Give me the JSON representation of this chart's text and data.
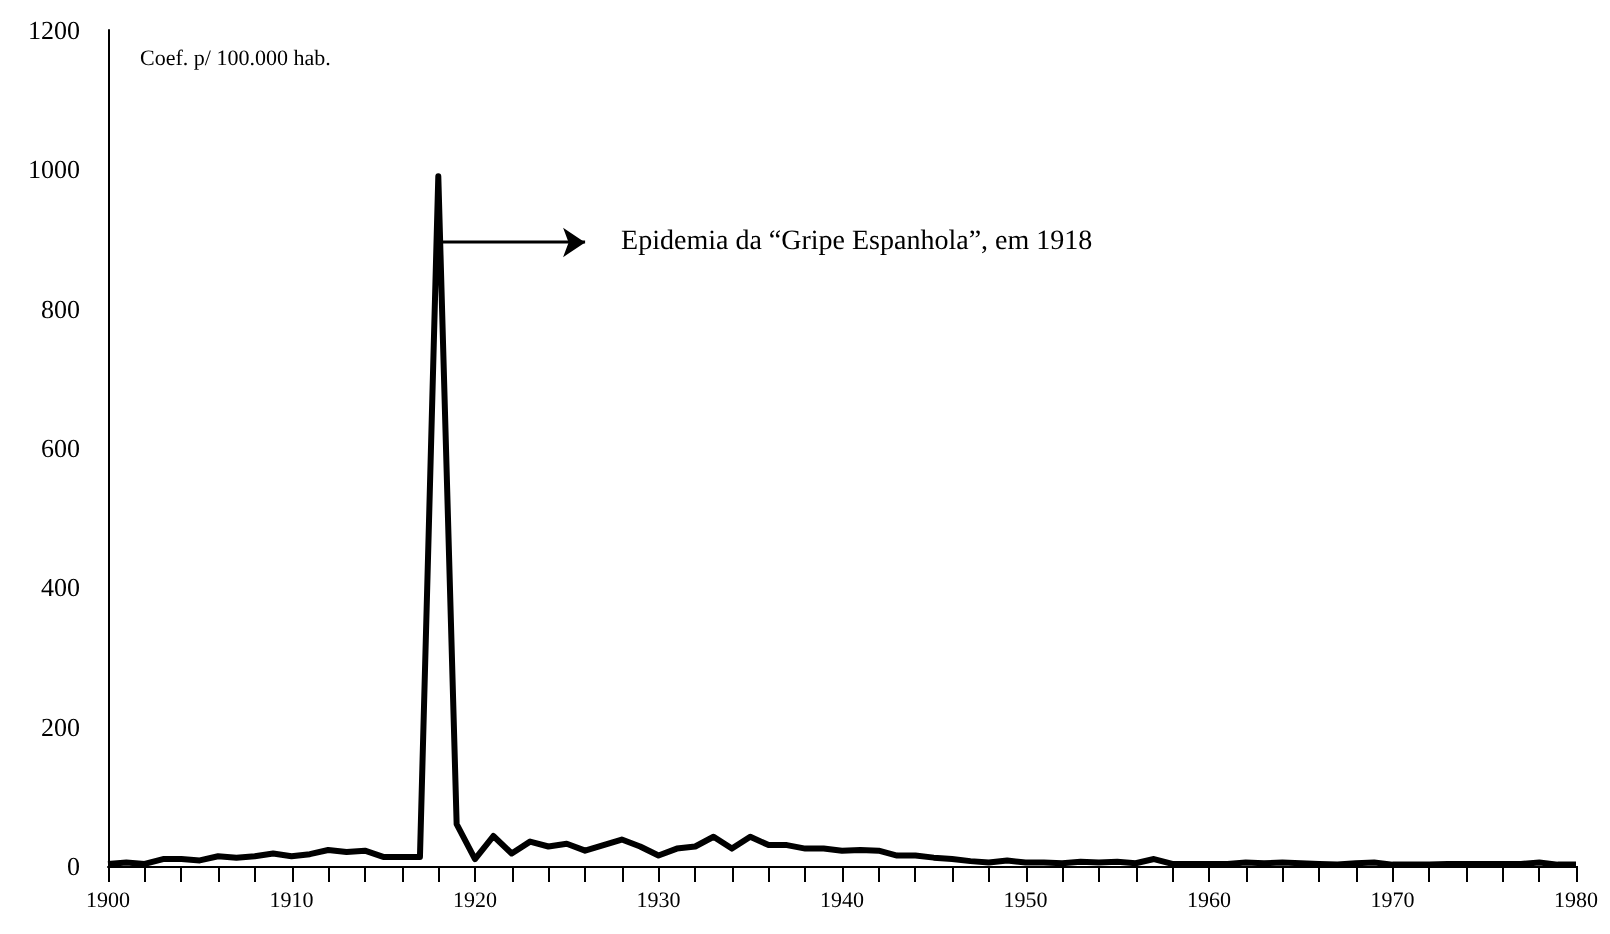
{
  "chart_data": {
    "type": "line",
    "ylabel": "Coef. p/ 100.000 hab.",
    "x": [
      1900,
      1901,
      1902,
      1903,
      1904,
      1905,
      1906,
      1907,
      1908,
      1909,
      1910,
      1911,
      1912,
      1913,
      1914,
      1915,
      1916,
      1917,
      1918,
      1919,
      1920,
      1921,
      1922,
      1923,
      1924,
      1925,
      1926,
      1927,
      1928,
      1929,
      1930,
      1931,
      1932,
      1933,
      1934,
      1935,
      1936,
      1937,
      1938,
      1939,
      1940,
      1941,
      1942,
      1943,
      1944,
      1945,
      1946,
      1947,
      1948,
      1949,
      1950,
      1951,
      1952,
      1953,
      1954,
      1955,
      1956,
      1957,
      1958,
      1959,
      1960,
      1961,
      1962,
      1963,
      1964,
      1965,
      1966,
      1967,
      1968,
      1969,
      1970,
      1971,
      1972,
      1973,
      1974,
      1975,
      1976,
      1977,
      1978,
      1979,
      1980
    ],
    "values": [
      3,
      5,
      3,
      10,
      10,
      8,
      14,
      12,
      14,
      18,
      14,
      17,
      23,
      20,
      22,
      13,
      13,
      13,
      990,
      60,
      10,
      43,
      18,
      35,
      28,
      32,
      22,
      30,
      38,
      28,
      15,
      25,
      28,
      42,
      25,
      42,
      30,
      30,
      25,
      25,
      22,
      23,
      22,
      15,
      15,
      12,
      10,
      7,
      5,
      8,
      5,
      5,
      4,
      6,
      5,
      6,
      4,
      10,
      3,
      3,
      3,
      3,
      5,
      4,
      5,
      4,
      3,
      2,
      4,
      5,
      2,
      2,
      2,
      3,
      3,
      3,
      3,
      3,
      5,
      2,
      2
    ],
    "color": "#000000",
    "marker": "none",
    "line_style": "solid",
    "grid": false,
    "xlim": [
      1900,
      1980
    ],
    "xticks": [
      1900,
      1910,
      1920,
      1930,
      1940,
      1950,
      1960,
      1970,
      1980
    ],
    "ylim": [
      0,
      1200
    ],
    "yticks": [
      0,
      200,
      400,
      600,
      800,
      1000,
      1200
    ],
    "annotations": [
      {
        "text": "Epidemia da “Gripe Espanhola”, em 1918",
        "x": 1918,
        "y": 895
      }
    ]
  }
}
